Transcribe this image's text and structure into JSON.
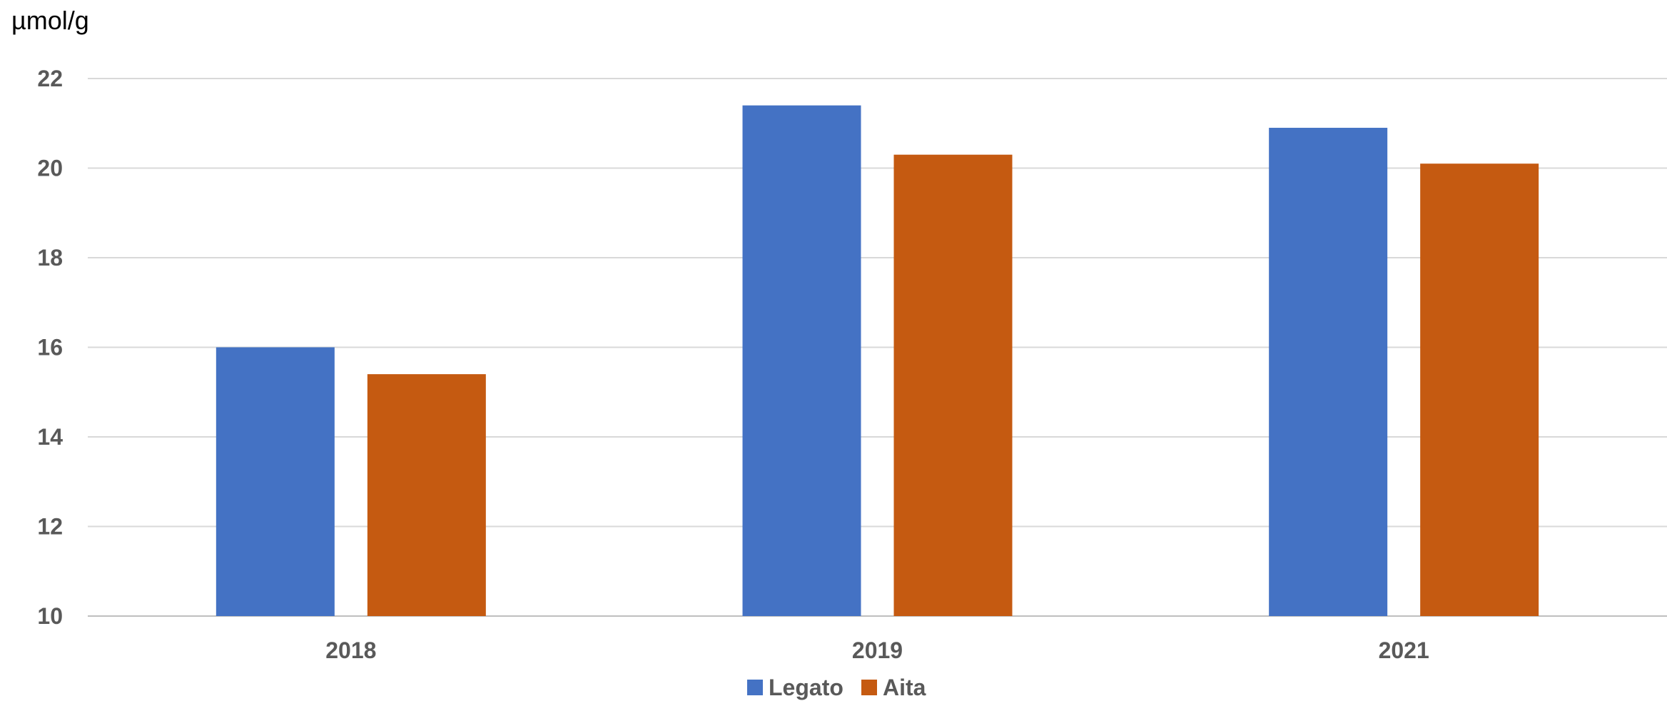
{
  "chart_data": {
    "type": "bar",
    "title": "",
    "ylabel": "µmol/g",
    "xlabel": "",
    "categories": [
      "2018",
      "2019",
      "2021"
    ],
    "series": [
      {
        "name": "Legato",
        "color": "#4472C4",
        "values": [
          16.0,
          21.4,
          20.9
        ]
      },
      {
        "name": "Aita",
        "color": "#C55A11",
        "values": [
          15.4,
          20.3,
          20.1
        ]
      }
    ],
    "ylim": [
      10,
      22
    ],
    "yticks": [
      "10",
      "12",
      "14",
      "16",
      "18",
      "20",
      "22"
    ],
    "grid": true,
    "legend_position": "bottom-center"
  }
}
